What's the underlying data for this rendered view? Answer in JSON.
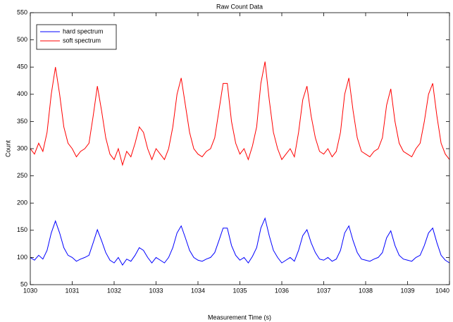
{
  "chart_data": {
    "type": "line",
    "title": "Raw Count Data",
    "xlabel": "Measurement Time (s)",
    "ylabel": "Count",
    "x": [
      1030,
      1030.1,
      1030.2,
      1030.3,
      1030.4,
      1030.5,
      1030.6,
      1030.7,
      1030.8,
      1030.9,
      1031,
      1031.1,
      1031.2,
      1031.3,
      1031.4,
      1031.5,
      1031.6,
      1031.7,
      1031.8,
      1031.9,
      1032,
      1032.1,
      1032.2,
      1032.3,
      1032.4,
      1032.5,
      1032.6,
      1032.7,
      1032.8,
      1032.9,
      1033,
      1033.1,
      1033.2,
      1033.3,
      1033.4,
      1033.5,
      1033.6,
      1033.7,
      1033.8,
      1033.9,
      1034,
      1034.1,
      1034.2,
      1034.3,
      1034.4,
      1034.5,
      1034.6,
      1034.7,
      1034.8,
      1034.9,
      1035,
      1035.1,
      1035.2,
      1035.3,
      1035.4,
      1035.5,
      1035.6,
      1035.7,
      1035.8,
      1035.9,
      1036,
      1036.1,
      1036.2,
      1036.3,
      1036.4,
      1036.5,
      1036.6,
      1036.7,
      1036.8,
      1036.9,
      1037,
      1037.1,
      1037.2,
      1037.3,
      1037.4,
      1037.5,
      1037.6,
      1037.7,
      1037.8,
      1037.9,
      1038,
      1038.1,
      1038.2,
      1038.3,
      1038.4,
      1038.5,
      1038.6,
      1038.7,
      1038.8,
      1038.9,
      1039,
      1039.1,
      1039.2,
      1039.3,
      1039.4,
      1039.5,
      1039.6,
      1039.7,
      1039.8,
      1039.9,
      1040
    ],
    "series": [
      {
        "name": "hard spectrum",
        "color": "#0000ff",
        "values": [
          100,
          95,
          104,
          97,
          113,
          145,
          167,
          145,
          118,
          104,
          100,
          93,
          97,
          100,
          104,
          127,
          151,
          131,
          109,
          95,
          90,
          100,
          86,
          97,
          93,
          104,
          118,
          113,
          100,
          90,
          100,
          95,
          90,
          100,
          118,
          145,
          158,
          136,
          113,
          100,
          95,
          93,
          97,
          100,
          109,
          131,
          154,
          154,
          122,
          104,
          95,
          100,
          90,
          102,
          118,
          154,
          172,
          140,
          113,
          100,
          90,
          95,
          100,
          93,
          113,
          140,
          151,
          127,
          109,
          97,
          95,
          100,
          93,
          97,
          113,
          145,
          158,
          131,
          109,
          97,
          95,
          93,
          97,
          100,
          109,
          136,
          149,
          122,
          104,
          97,
          95,
          93,
          100,
          104,
          122,
          145,
          154,
          127,
          104,
          95,
          90
        ]
      },
      {
        "name": "soft spectrum",
        "color": "#ff0000",
        "values": [
          300,
          290,
          310,
          295,
          330,
          400,
          450,
          400,
          340,
          310,
          300,
          285,
          295,
          300,
          310,
          360,
          415,
          370,
          320,
          290,
          280,
          300,
          270,
          295,
          285,
          310,
          340,
          330,
          300,
          280,
          300,
          290,
          280,
          300,
          340,
          400,
          430,
          380,
          330,
          300,
          290,
          285,
          295,
          300,
          320,
          370,
          420,
          420,
          350,
          310,
          290,
          300,
          280,
          305,
          340,
          420,
          460,
          390,
          330,
          300,
          280,
          290,
          300,
          285,
          330,
          390,
          415,
          360,
          320,
          295,
          290,
          300,
          285,
          295,
          330,
          400,
          430,
          370,
          320,
          295,
          290,
          285,
          295,
          300,
          320,
          380,
          410,
          350,
          310,
          295,
          290,
          285,
          300,
          310,
          350,
          400,
          420,
          360,
          310,
          290,
          280
        ]
      }
    ],
    "xlim": [
      1030,
      1040
    ],
    "xticks": [
      1030,
      1031,
      1032,
      1033,
      1034,
      1035,
      1036,
      1037,
      1038,
      1039,
      1040
    ],
    "ylim": [
      50,
      550
    ],
    "yticks": [
      50,
      100,
      150,
      200,
      250,
      300,
      350,
      400,
      450,
      500,
      550
    ],
    "legend": "upper left"
  }
}
